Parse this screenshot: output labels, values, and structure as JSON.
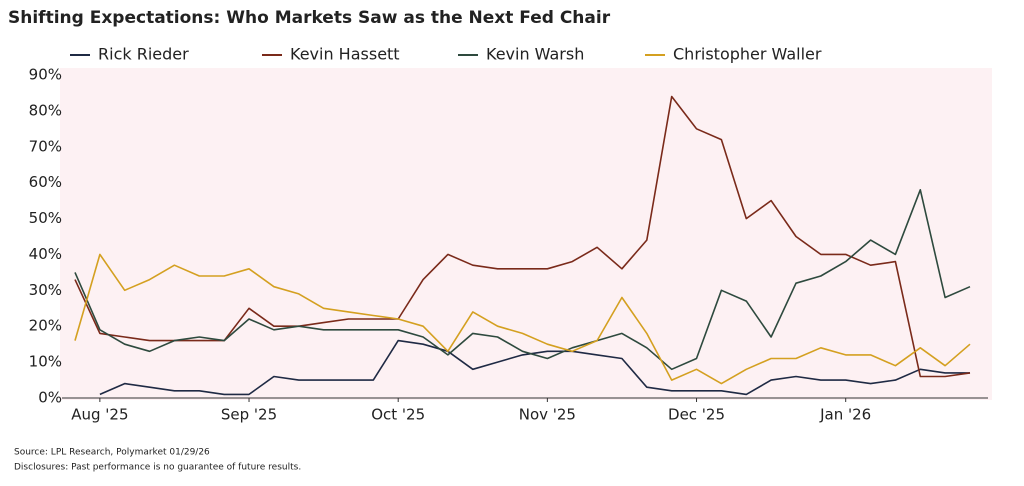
{
  "chart_data": {
    "type": "line",
    "title": "Shifting Expectations: Who Markets Saw as the Next Fed Chair",
    "source": "Source: LPL Research, Polymarket 01/29/26",
    "disclosures": "Disclosures: Past performance is no guarantee of future results.",
    "categories": [
      null,
      "Aug '25",
      null,
      null,
      null,
      null,
      null,
      "Sep '25",
      null,
      null,
      null,
      null,
      null,
      "Oct '25",
      null,
      null,
      null,
      null,
      null,
      "Nov '25",
      null,
      null,
      null,
      null,
      null,
      "Dec '25",
      null,
      null,
      null,
      null,
      null,
      "Jan '26",
      null,
      null,
      null,
      null,
      null
    ],
    "series": [
      {
        "name": "Rick Rieder",
        "color": "#1f2a44",
        "values": [
          null,
          1,
          4,
          3,
          2,
          2,
          1,
          1,
          6,
          5,
          5,
          5,
          5,
          16,
          15,
          13,
          8,
          10,
          12,
          13,
          13,
          12,
          11,
          3,
          2,
          2,
          2,
          1,
          5,
          6,
          5,
          5,
          4,
          5,
          8,
          7,
          7
        ]
      },
      {
        "name": "Kevin Hassett",
        "color": "#7a2a1a",
        "values": [
          33,
          18,
          17,
          16,
          16,
          16,
          16,
          25,
          20,
          20,
          21,
          22,
          22,
          22,
          33,
          40,
          37,
          36,
          36,
          36,
          38,
          42,
          36,
          44,
          84,
          75,
          72,
          50,
          55,
          45,
          40,
          40,
          37,
          38,
          6,
          6,
          7
        ]
      },
      {
        "name": "Kevin Warsh",
        "color": "#2e4a3e",
        "values": [
          35,
          19,
          15,
          13,
          16,
          17,
          16,
          22,
          19,
          20,
          19,
          19,
          19,
          19,
          17,
          12,
          18,
          17,
          13,
          11,
          14,
          16,
          18,
          14,
          8,
          11,
          30,
          27,
          17,
          32,
          34,
          38,
          44,
          40,
          58,
          28,
          31
        ]
      },
      {
        "name": "Christopher Waller",
        "color": "#d4a020",
        "values": [
          16,
          40,
          30,
          33,
          37,
          34,
          34,
          36,
          31,
          29,
          25,
          24,
          23,
          22,
          20,
          13,
          24,
          20,
          18,
          15,
          13,
          16,
          28,
          18,
          5,
          8,
          4,
          8,
          11,
          11,
          14,
          12,
          12,
          9,
          14,
          9,
          15
        ]
      }
    ],
    "ylim": [
      0,
      90
    ],
    "yticks": [
      {
        "value": 0,
        "label": "0%"
      },
      {
        "value": 10,
        "label": "10%"
      },
      {
        "value": 20,
        "label": "20%"
      },
      {
        "value": 30,
        "label": "30%"
      },
      {
        "value": 40,
        "label": "40%"
      },
      {
        "value": 50,
        "label": "50%"
      },
      {
        "value": 60,
        "label": "60%"
      },
      {
        "value": 70,
        "label": "70%"
      },
      {
        "value": 80,
        "label": "80%"
      },
      {
        "value": 90,
        "label": "90%"
      }
    ],
    "grid": false
  }
}
